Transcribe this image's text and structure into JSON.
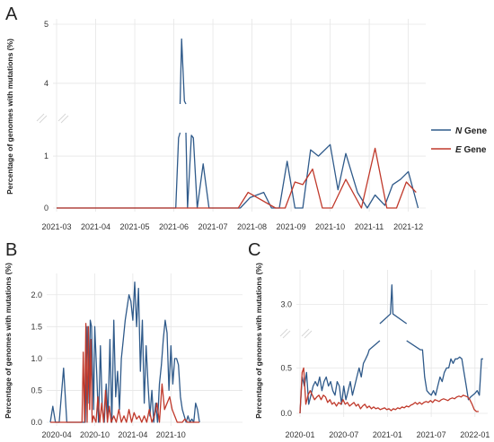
{
  "colors": {
    "n_gene": "#2f5a8a",
    "e_gene": "#c0392b",
    "grid": "#e6e6e6"
  },
  "legend": {
    "items": [
      {
        "italic": "N",
        "text": " Gene",
        "color": "#2f5a8a"
      },
      {
        "italic": "E",
        "text": " Gene",
        "color": "#c0392b"
      }
    ]
  },
  "chart_data": [
    {
      "panel": "A",
      "type": "line",
      "ylabel": "Percentage of genomes with mutations (%)",
      "xlim": [
        0,
        9.4
      ],
      "x_ticks": [
        {
          "x": 0,
          "label": "2021-03"
        },
        {
          "x": 1,
          "label": "2021-04"
        },
        {
          "x": 2,
          "label": "2021-05"
        },
        {
          "x": 3,
          "label": "2021-06"
        },
        {
          "x": 4,
          "label": "2021-07"
        },
        {
          "x": 5,
          "label": "2021-08"
        },
        {
          "x": 6,
          "label": "2021-09"
        },
        {
          "x": 7,
          "label": "2021-10"
        },
        {
          "x": 8,
          "label": "2021-11"
        },
        {
          "x": 9,
          "label": "2021-12"
        }
      ],
      "y_ticks": [
        0,
        1,
        4,
        5
      ],
      "y_break": [
        1.45,
        3.65
      ],
      "series": [
        {
          "name": "N Gene",
          "color": "#2f5a8a",
          "x": [
            0,
            3.05,
            3.12,
            3.2,
            3.27,
            3.35,
            3.45,
            3.5,
            3.6,
            3.75,
            3.9,
            4.05,
            4.3,
            4.5,
            4.7,
            4.95,
            5.3,
            5.5,
            5.7,
            5.9,
            6.1,
            6.3,
            6.5,
            6.7,
            7.0,
            7.2,
            7.4,
            7.7,
            7.95,
            8.15,
            8.4,
            8.6,
            8.8,
            9.0,
            9.25
          ],
          "values": [
            0,
            0,
            1.35,
            4.75,
            3.7,
            0,
            1.4,
            1.35,
            0,
            0.85,
            0,
            0,
            0,
            0,
            0,
            0.2,
            0.3,
            0,
            0,
            0.9,
            0,
            0,
            1.12,
            1.0,
            1.22,
            0.35,
            1.05,
            0.3,
            0,
            0.25,
            0.05,
            0.45,
            0.55,
            0.7,
            0.0
          ]
        },
        {
          "name": "E Gene",
          "color": "#c0392b",
          "x": [
            0,
            3.3,
            4.4,
            4.65,
            4.9,
            5.6,
            5.85,
            6.1,
            6.3,
            6.55,
            6.8,
            7.05,
            7.4,
            7.8,
            8.15,
            8.45,
            8.7,
            8.95,
            9.2
          ],
          "values": [
            0,
            0,
            0,
            0,
            0.3,
            0,
            0,
            0.5,
            0.45,
            0.75,
            0,
            0,
            0.55,
            0,
            1.15,
            0,
            0,
            0.5,
            0.3
          ]
        }
      ]
    },
    {
      "panel": "B",
      "type": "line",
      "ylabel": "Percentage of genomes with mutations (%)",
      "xlim": [
        0,
        30
      ],
      "x_ticks": [
        {
          "x": 1,
          "label": "2020-04"
        },
        {
          "x": 7,
          "label": "2020-10"
        },
        {
          "x": 13,
          "label": "2021-04"
        },
        {
          "x": 19,
          "label": "2021-10"
        }
      ],
      "y_ticks": [
        0.0,
        0.5,
        1.0,
        1.5,
        2.0
      ],
      "series": [
        {
          "name": "N Gene",
          "color": "#2f5a8a",
          "x": [
            0,
            0.4,
            0.8,
            1.4,
            2.1,
            2.6,
            5.5,
            5.8,
            6.1,
            6.3,
            6.5,
            6.8,
            7.0,
            7.3,
            7.6,
            7.9,
            8.2,
            8.5,
            8.8,
            9.1,
            9.4,
            9.7,
            10.0,
            10.3,
            10.6,
            10.9,
            11.2,
            11.5,
            11.8,
            12.1,
            12.4,
            12.7,
            13.0,
            13.3,
            13.6,
            13.9,
            14.2,
            14.5,
            14.8,
            15.1,
            15.4,
            15.7,
            16.0,
            16.3,
            16.6,
            16.9,
            17.2,
            17.5,
            17.8,
            18.1,
            18.4,
            18.7,
            19.0,
            19.3,
            19.6,
            19.9,
            20.2,
            20.5,
            20.8,
            21.1,
            21.4,
            21.7,
            22.0,
            22.3,
            22.6,
            22.9,
            23.2,
            23.5
          ],
          "values": [
            0,
            0.25,
            0,
            0,
            0.85,
            0,
            0,
            1.5,
            0.3,
            1.6,
            1.5,
            0.2,
            1.5,
            0.8,
            0,
            1.2,
            0.2,
            0,
            0.6,
            0.1,
            1.3,
            0,
            1.6,
            0.4,
            0.8,
            0.2,
            1.0,
            1.3,
            1.6,
            1.8,
            2.0,
            1.9,
            1.6,
            2.2,
            1.5,
            2.1,
            0.8,
            1.6,
            0.3,
            1.2,
            0.6,
            0.1,
            0.5,
            0,
            0.3,
            0,
            0.6,
            0.9,
            1.3,
            1.6,
            1.4,
            0.5,
            1.2,
            0.6,
            1.0,
            1.0,
            0.9,
            0.4,
            0.2,
            0.1,
            0,
            0.1,
            0,
            0.05,
            0,
            0.3,
            0.2,
            0
          ]
        },
        {
          "name": "E Gene",
          "color": "#c0392b",
          "x": [
            0,
            5.0,
            5.2,
            5.4,
            5.6,
            5.8,
            6.0,
            6.2,
            6.4,
            6.6,
            6.8,
            7.2,
            7.5,
            7.8,
            8.1,
            8.4,
            8.7,
            9.0,
            9.3,
            9.6,
            10.0,
            10.4,
            10.8,
            11.2,
            11.6,
            12.0,
            12.4,
            12.8,
            13.2,
            13.6,
            14.0,
            14.4,
            14.8,
            15.2,
            15.6,
            16.0,
            16.4,
            16.8,
            17.2,
            17.6,
            18.0,
            18.4,
            18.8,
            19.2,
            19.6,
            20.0,
            20.4,
            20.8,
            21.2,
            21.6,
            22.0,
            23.5
          ],
          "values": [
            0,
            0,
            1.1,
            0,
            1.55,
            0,
            1.5,
            0.2,
            1.3,
            0,
            0.1,
            0,
            0.4,
            0,
            0.3,
            0,
            0.5,
            0,
            0.25,
            0,
            0.1,
            0,
            0.2,
            0,
            0.1,
            0,
            0.2,
            0,
            0.15,
            0.05,
            0.1,
            0,
            0.1,
            0,
            0.2,
            0,
            0.1,
            0.3,
            0,
            0.6,
            0.2,
            0.3,
            0.4,
            0.2,
            0.1,
            0,
            0,
            0,
            0.05,
            0,
            0,
            0
          ]
        }
      ]
    },
    {
      "panel": "C",
      "type": "line",
      "ylabel": "Percentage of genomes with mutations (%)",
      "xlim": [
        0,
        25.5
      ],
      "x_ticks": [
        {
          "x": 0,
          "label": "2020-01"
        },
        {
          "x": 6,
          "label": "2020-07"
        },
        {
          "x": 12,
          "label": "2021-01"
        },
        {
          "x": 18,
          "label": "2021-07"
        },
        {
          "x": 24,
          "label": "2022-01"
        }
      ],
      "y_ticks": [
        0.0,
        0.5,
        3.0
      ],
      "y_break": [
        0.8,
        2.8
      ],
      "series": [
        {
          "name": "N Gene",
          "color": "#2f5a8a",
          "x": [
            0,
            0.3,
            0.6,
            0.9,
            1.2,
            1.5,
            1.8,
            2.1,
            2.4,
            2.7,
            3.0,
            3.3,
            3.6,
            3.9,
            4.2,
            4.5,
            4.8,
            5.1,
            5.4,
            5.7,
            6.0,
            6.3,
            6.6,
            6.9,
            7.2,
            7.5,
            7.8,
            8.1,
            8.4,
            8.7,
            9.0,
            9.3,
            9.5,
            12.4,
            12.6,
            12.75,
            16.5,
            16.8,
            17.1,
            17.4,
            17.7,
            18.0,
            18.3,
            18.6,
            18.9,
            19.2,
            19.5,
            19.8,
            20.1,
            20.4,
            20.7,
            21.0,
            21.3,
            21.6,
            21.9,
            22.2,
            22.5,
            22.8,
            23.1,
            23.4,
            23.7,
            24.0,
            24.3,
            24.6,
            24.9,
            25.1
          ],
          "values": [
            0,
            0.4,
            0.3,
            0.45,
            0.1,
            0.2,
            0.3,
            0.35,
            0.3,
            0.4,
            0.25,
            0.35,
            0.4,
            0.3,
            0.35,
            0.25,
            0.2,
            0.35,
            0.3,
            0.1,
            0.3,
            0.15,
            0.25,
            0.35,
            0.2,
            0.3,
            0.4,
            0.5,
            0.4,
            0.55,
            0.6,
            0.65,
            0.7,
            2.9,
            3.2,
            2.9,
            0.7,
            0.7,
            0.4,
            0.25,
            0.22,
            0.2,
            0.25,
            0.2,
            0.3,
            0.4,
            0.35,
            0.45,
            0.5,
            0.5,
            0.6,
            0.55,
            0.6,
            0.6,
            0.62,
            0.6,
            0.45,
            0.3,
            0.15,
            0.18,
            0.2,
            0.22,
            0.25,
            0.2,
            0.6,
            0.6
          ]
        },
        {
          "name": "E Gene",
          "color": "#c0392b",
          "x": [
            0,
            0.3,
            0.5,
            0.8,
            1.1,
            1.4,
            1.7,
            2.0,
            2.3,
            2.6,
            2.9,
            3.2,
            3.5,
            3.8,
            4.1,
            4.4,
            4.7,
            5.0,
            5.3,
            5.6,
            5.9,
            6.2,
            6.5,
            6.8,
            7.1,
            7.4,
            7.7,
            8.0,
            8.3,
            8.6,
            8.9,
            9.2,
            9.5,
            9.8,
            10.1,
            10.4,
            10.7,
            11.0,
            11.3,
            11.6,
            11.9,
            12.2,
            12.5,
            12.8,
            13.1,
            13.4,
            13.7,
            14.0,
            14.3,
            14.6,
            14.9,
            15.2,
            15.5,
            15.8,
            16.1,
            16.4,
            16.7,
            17.0,
            17.3,
            17.6,
            17.9,
            18.2,
            18.5,
            18.8,
            19.1,
            19.4,
            19.7,
            20.0,
            20.3,
            20.6,
            20.9,
            21.2,
            21.5,
            21.8,
            22.1,
            22.4,
            22.7,
            23.0,
            23.3,
            23.6,
            23.9,
            24.2,
            24.5
          ],
          "values": [
            0,
            0.45,
            0.5,
            0.1,
            0.2,
            0.25,
            0.2,
            0.15,
            0.18,
            0.2,
            0.15,
            0.2,
            0.18,
            0.12,
            0.15,
            0.1,
            0.12,
            0.08,
            0.12,
            0.1,
            0.15,
            0.1,
            0.12,
            0.08,
            0.1,
            0.12,
            0.08,
            0.1,
            0.05,
            0.08,
            0.1,
            0.06,
            0.08,
            0.05,
            0.07,
            0.05,
            0.06,
            0.04,
            0.05,
            0.06,
            0.04,
            0.05,
            0.03,
            0.05,
            0.04,
            0.06,
            0.05,
            0.07,
            0.06,
            0.08,
            0.07,
            0.09,
            0.1,
            0.12,
            0.1,
            0.12,
            0.1,
            0.12,
            0.13,
            0.12,
            0.14,
            0.12,
            0.15,
            0.14,
            0.13,
            0.15,
            0.16,
            0.15,
            0.14,
            0.16,
            0.17,
            0.16,
            0.18,
            0.19,
            0.18,
            0.2,
            0.19,
            0.18,
            0.15,
            0.1,
            0.04,
            0.02,
            0.02
          ]
        }
      ]
    }
  ],
  "panel_labels": {
    "a": "A",
    "b": "B",
    "c": "C"
  }
}
